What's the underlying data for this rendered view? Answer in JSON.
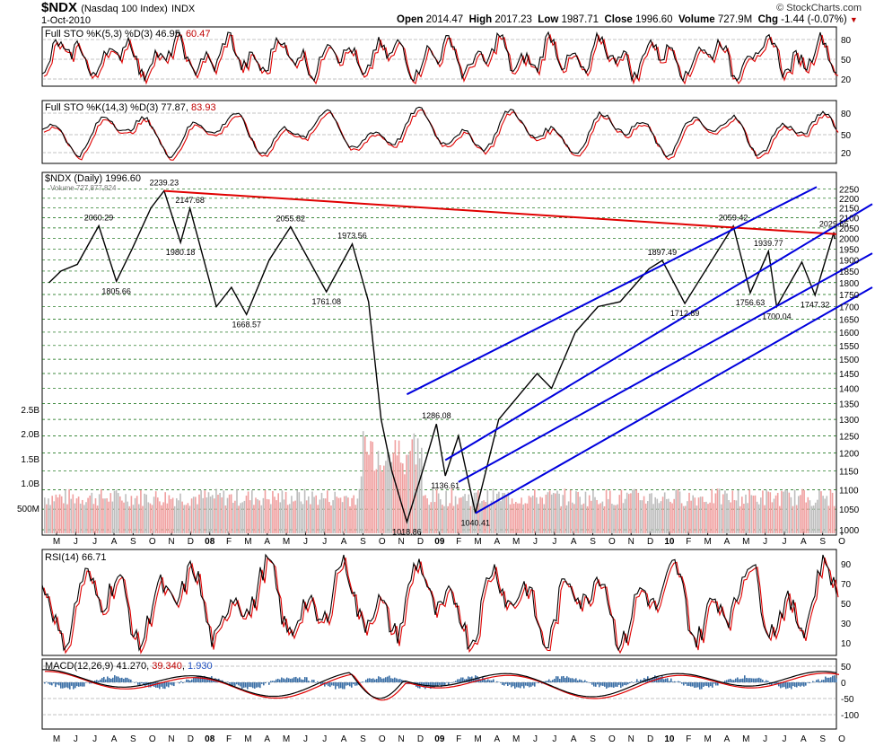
{
  "header": {
    "symbol": "$NDX",
    "name": "(Nasdaq 100 Index)",
    "exchange": "INDX",
    "date": "1-Oct-2010",
    "open_label": "Open",
    "open": "2014.47",
    "high_label": "High",
    "high": "2017.23",
    "low_label": "Low",
    "low": "1987.71",
    "close_label": "Close",
    "close": "1996.60",
    "volume_label": "Volume",
    "volume": "727.9M",
    "chg_label": "Chg",
    "chg": "-1.44 (-0.07%)",
    "brand": "© StockCharts.com"
  },
  "panels": {
    "sto1": {
      "label": "Full STO %K(5,3) %D(3)",
      "k": "46.95",
      "d": "60.47",
      "ticks": [
        "80",
        "50",
        "20"
      ]
    },
    "sto2": {
      "label": "Full STO %K(14,3) %D(3)",
      "k": "77.87",
      "d": "83.93",
      "ticks": [
        "80",
        "50",
        "20"
      ]
    },
    "price": {
      "label": "$NDX (Daily)",
      "value": "1996.60",
      "vol_label": "Volume 727,877,824"
    },
    "rsi": {
      "label": "RSI(14)",
      "value": "66.71",
      "ticks": [
        "90",
        "70",
        "50",
        "30",
        "10"
      ]
    },
    "macd": {
      "label": "MACD(12,26,9)",
      "v1": "41.270",
      "v2": "39.340",
      "v3": "1.930",
      "ticks": [
        "50",
        "0",
        "-50",
        "-100"
      ]
    }
  },
  "chart_data": {
    "type": "line",
    "price_axis": {
      "ticks": [
        1000,
        1050,
        1100,
        1150,
        1200,
        1250,
        1300,
        1350,
        1400,
        1450,
        1500,
        1550,
        1600,
        1650,
        1700,
        1750,
        1800,
        1850,
        1900,
        1950,
        2000,
        2050,
        2100,
        2150,
        2200,
        2250
      ],
      "scale": "log"
    },
    "volume_axis": {
      "ticks": [
        "500M",
        "1.0B",
        "1.5B",
        "2.0B",
        "2.5B"
      ]
    },
    "x_labels": [
      "M",
      "J",
      "J",
      "A",
      "S",
      "O",
      "N",
      "D",
      "08",
      "F",
      "M",
      "A",
      "M",
      "J",
      "J",
      "A",
      "S",
      "O",
      "N",
      "D",
      "09",
      "F",
      "M",
      "A",
      "M",
      "J",
      "J",
      "A",
      "S",
      "O",
      "N",
      "D",
      "10",
      "F",
      "M",
      "A",
      "M",
      "J",
      "J",
      "A",
      "S",
      "O"
    ],
    "series": [
      {
        "points": [
          [
            "2007-05-01",
            1800
          ],
          [
            "2007-05-20",
            1850
          ],
          [
            "2007-06-15",
            1880
          ],
          [
            "2007-07-19",
            2060.29
          ],
          [
            "2007-08-16",
            1805.66
          ],
          [
            "2007-09-10",
            1950
          ],
          [
            "2007-10-10",
            2150
          ],
          [
            "2007-10-31",
            2239.23
          ],
          [
            "2007-11-26",
            1980.18
          ],
          [
            "2007-12-11",
            2147.68
          ],
          [
            "2008-01-22",
            1700
          ],
          [
            "2008-02-15",
            1780
          ],
          [
            "2008-03-10",
            1668.57
          ],
          [
            "2008-04-15",
            1900
          ],
          [
            "2008-05-19",
            2055.82
          ],
          [
            "2008-07-15",
            1761.08
          ],
          [
            "2008-08-25",
            1973.56
          ],
          [
            "2008-09-20",
            1720
          ],
          [
            "2008-10-10",
            1300
          ],
          [
            "2008-10-27",
            1150
          ],
          [
            "2008-11-20",
            1018.86
          ],
          [
            "2008-12-15",
            1150
          ],
          [
            "2009-01-06",
            1286.08
          ],
          [
            "2009-01-20",
            1136.61
          ],
          [
            "2009-02-10",
            1250
          ],
          [
            "2009-03-09",
            1040.41
          ],
          [
            "2009-04-15",
            1300
          ],
          [
            "2009-06-15",
            1450
          ],
          [
            "2009-07-08",
            1400
          ],
          [
            "2009-08-15",
            1600
          ],
          [
            "2009-09-20",
            1700
          ],
          [
            "2009-10-25",
            1720
          ],
          [
            "2009-12-10",
            1860
          ],
          [
            "2009-12-31",
            1897.49
          ],
          [
            "2010-02-05",
            1712.89
          ],
          [
            "2010-04-23",
            2059.42
          ],
          [
            "2010-05-20",
            1756.63
          ],
          [
            "2010-06-18",
            1939.77
          ],
          [
            "2010-07-01",
            1700.04
          ],
          [
            "2010-08-10",
            1890
          ],
          [
            "2010-08-31",
            1747.32
          ],
          [
            "2010-09-30",
            2029.65
          ],
          [
            "2010-10-01",
            1996.6
          ]
        ]
      }
    ],
    "annotations": [
      "2239.23",
      "2147.68",
      "2060.29",
      "1980.18",
      "1805.66",
      "2055.82",
      "1973.56",
      "1761.08",
      "1668.57",
      "1018.86",
      "1286.08",
      "1136.61",
      "1040.41",
      "1897.49",
      "1712.89",
      "2059.42",
      "1939.77",
      "1756.63",
      "1700.04",
      "2029.65",
      "1747.32"
    ],
    "colors": {
      "price": "#000000",
      "down": "#c0303a",
      "volume": "#f0a0a0",
      "grid": "#006400",
      "trend_red": "#e00000",
      "channel": "#0000dd",
      "signal": "#e00000"
    }
  }
}
